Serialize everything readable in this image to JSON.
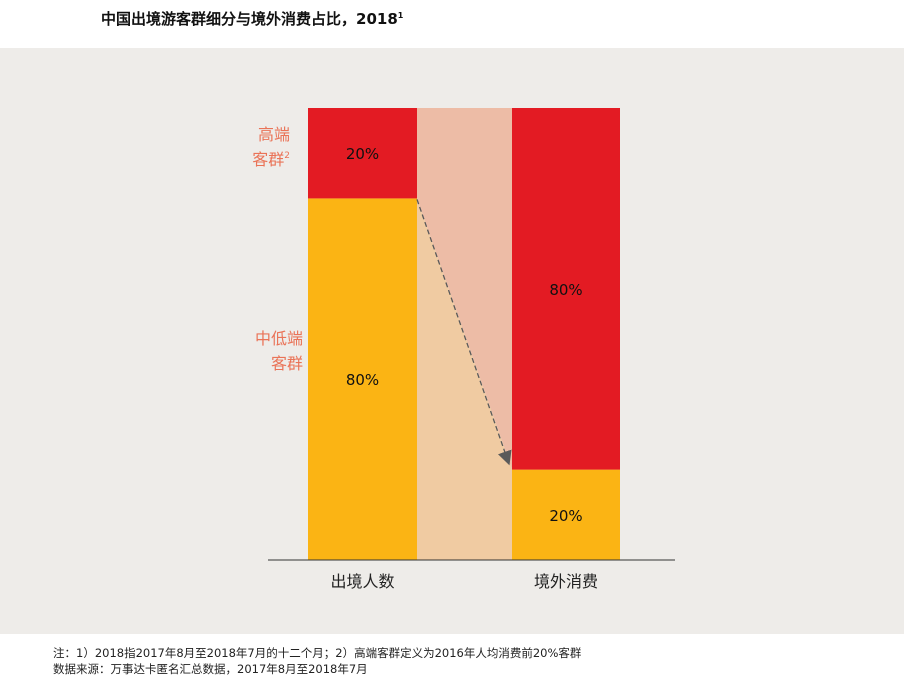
{
  "header": {
    "title": "中国出境游客群细分与境外消费占比，2018",
    "title_sup": "1"
  },
  "footnotes": {
    "note": "注：1）2018指2017年8月至2018年7月的十二个月；2）高端客群定义为2016年人均消费前20%客群",
    "source": "数据来源：万事达卡匿名汇总数据，2017年8月至2018年7月"
  },
  "colors": {
    "high_end": "#e31b23",
    "mid_low": "#fbb414",
    "high_end_band": "#edbca6",
    "mid_low_band": "#f0cba2",
    "segment_label": "#ea7357",
    "panel_bg": "#eeece9"
  },
  "chart_data": {
    "type": "bar",
    "stacked": true,
    "categories": [
      "出境人数",
      "境外消费"
    ],
    "series": [
      {
        "name": "中低端客群",
        "values": [
          80,
          20
        ],
        "labels": [
          "80%",
          "20%"
        ]
      },
      {
        "name": "高端客群",
        "sup": "2",
        "values": [
          20,
          80
        ],
        "labels": [
          "20%",
          "80%"
        ]
      }
    ],
    "ylim": [
      0,
      100
    ],
    "unit": "%",
    "annotation": "arrow from high-end share of travelers to high-end share of spending"
  }
}
